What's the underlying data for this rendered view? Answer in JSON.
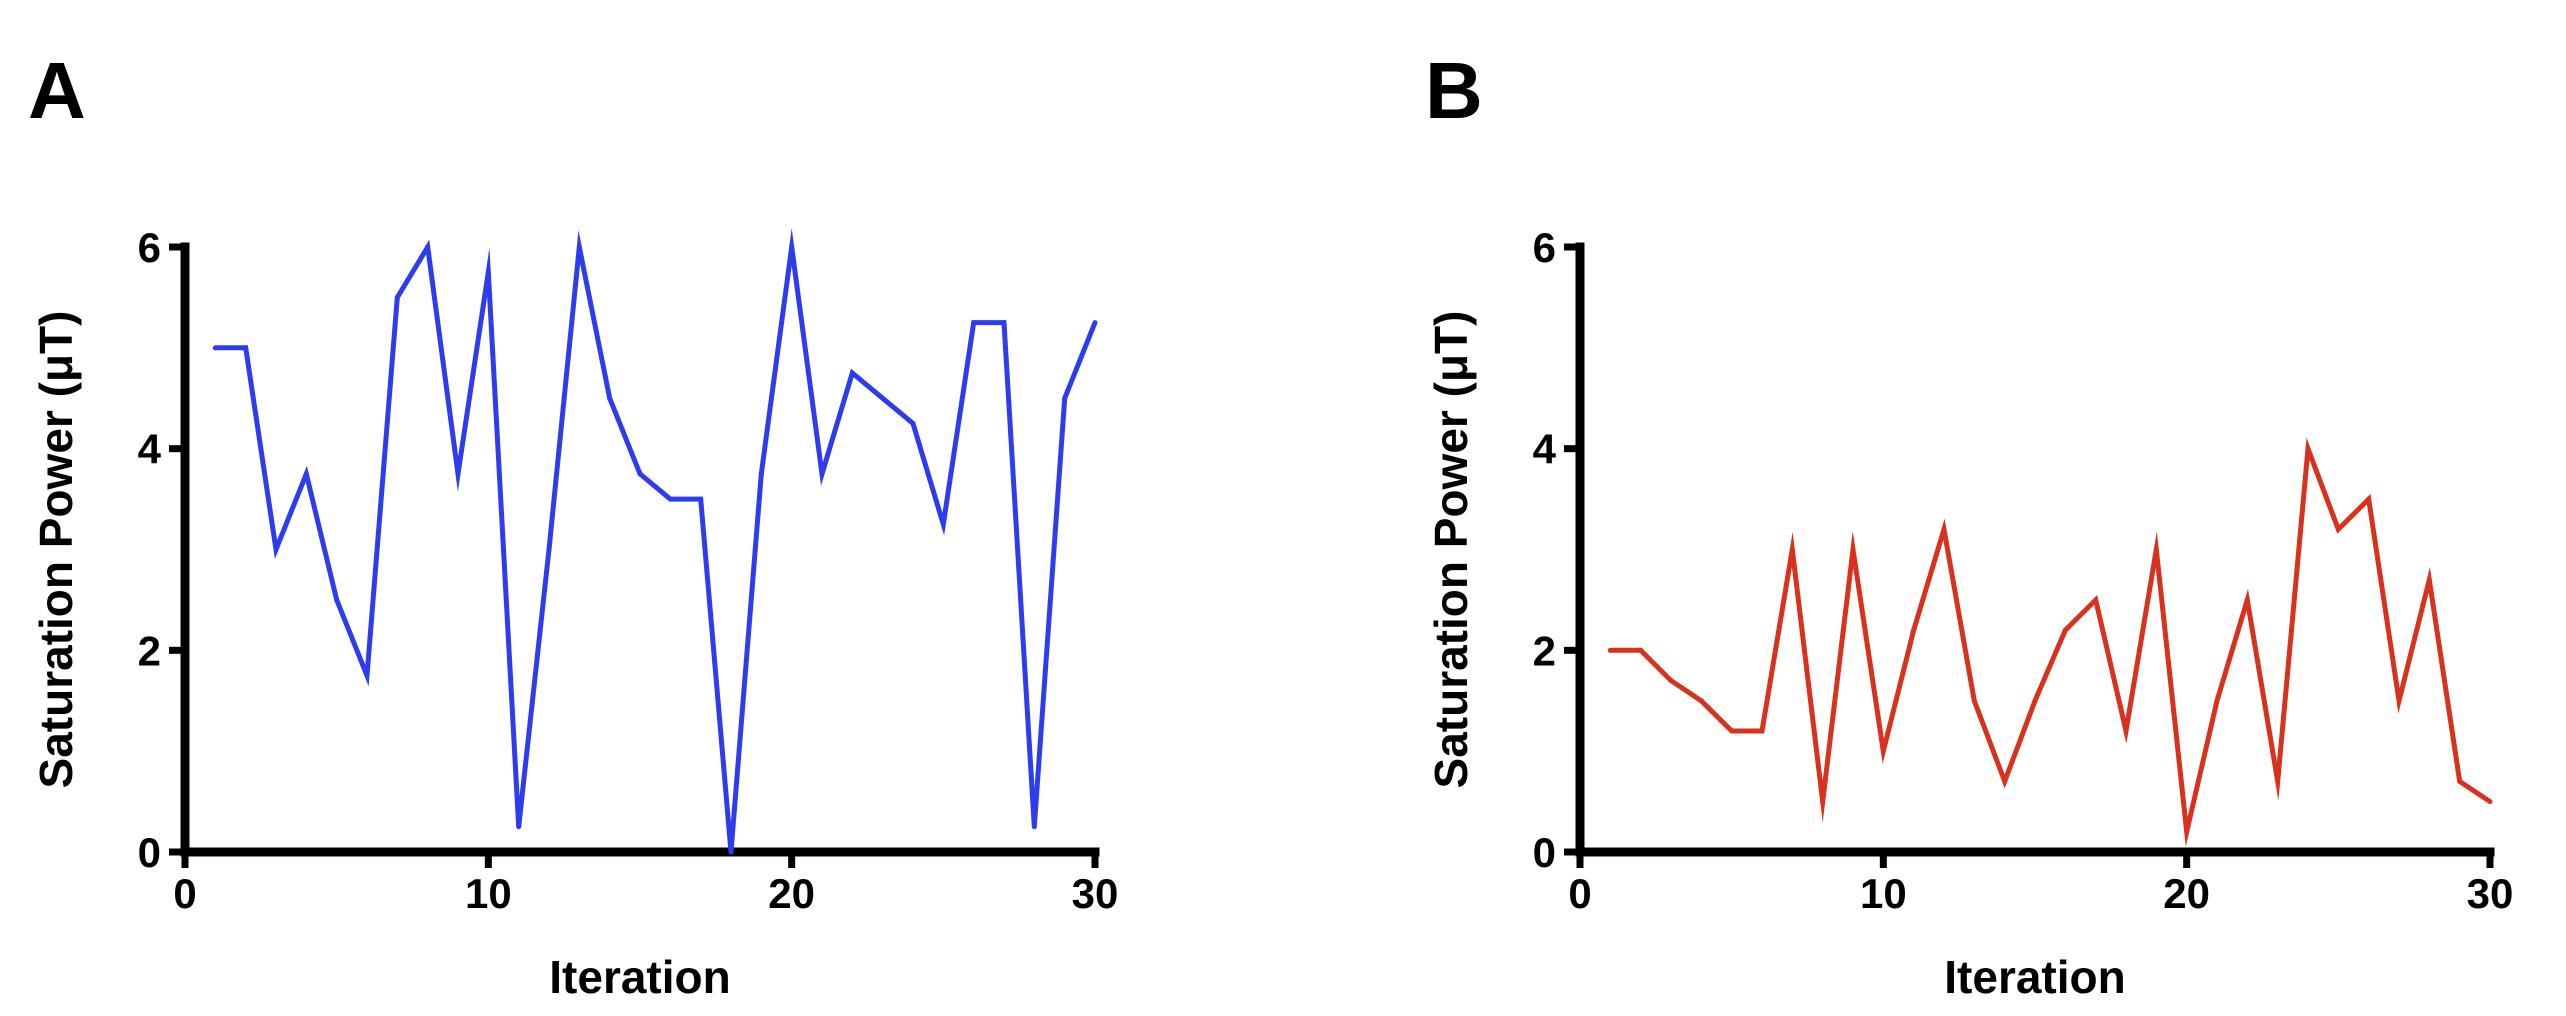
{
  "chart_data": [
    {
      "panel_label": "A",
      "type": "line",
      "xlabel": "Iteration",
      "ylabel": "Saturation Power (μT)",
      "xlim": [
        0,
        30
      ],
      "ylim": [
        0,
        6
      ],
      "xticks": [
        0,
        10,
        20,
        30
      ],
      "yticks": [
        0,
        2,
        4,
        6
      ],
      "color": "#2e3cf0",
      "x": [
        1,
        2,
        3,
        4,
        5,
        6,
        7,
        8,
        9,
        10,
        11,
        12,
        13,
        14,
        15,
        16,
        17,
        18,
        19,
        20,
        21,
        22,
        23,
        24,
        25,
        26,
        27,
        28,
        29,
        30
      ],
      "y": [
        5,
        5,
        3,
        3.75,
        2.5,
        1.75,
        5.5,
        6,
        3.75,
        5.75,
        0.25,
        3,
        6,
        4.5,
        3.75,
        3.5,
        3.5,
        0,
        3.75,
        6,
        3.75,
        4.75,
        4.5,
        4.25,
        3.25,
        5.25,
        5.25,
        0.25,
        4.5,
        5.25
      ]
    },
    {
      "panel_label": "B",
      "type": "line",
      "xlabel": "Iteration",
      "ylabel": "Saturation Power (μT)",
      "xlim": [
        0,
        30
      ],
      "ylim": [
        0,
        6
      ],
      "xticks": [
        0,
        10,
        20,
        30
      ],
      "yticks": [
        0,
        2,
        4,
        6
      ],
      "color": "#d8321e",
      "x": [
        1,
        2,
        3,
        4,
        5,
        6,
        7,
        8,
        9,
        10,
        11,
        12,
        13,
        14,
        15,
        16,
        17,
        18,
        19,
        20,
        21,
        22,
        23,
        24,
        25,
        26,
        27,
        28,
        29,
        30
      ],
      "y": [
        2,
        2,
        1.7,
        1.5,
        1.2,
        1.2,
        3,
        0.5,
        3,
        1,
        2.2,
        3.2,
        1.5,
        0.7,
        1.5,
        2.2,
        2.5,
        1.2,
        3,
        0.2,
        1.5,
        2.5,
        0.7,
        4,
        3.2,
        3.5,
        1.5,
        2.7,
        0.7,
        0.5
      ]
    }
  ]
}
